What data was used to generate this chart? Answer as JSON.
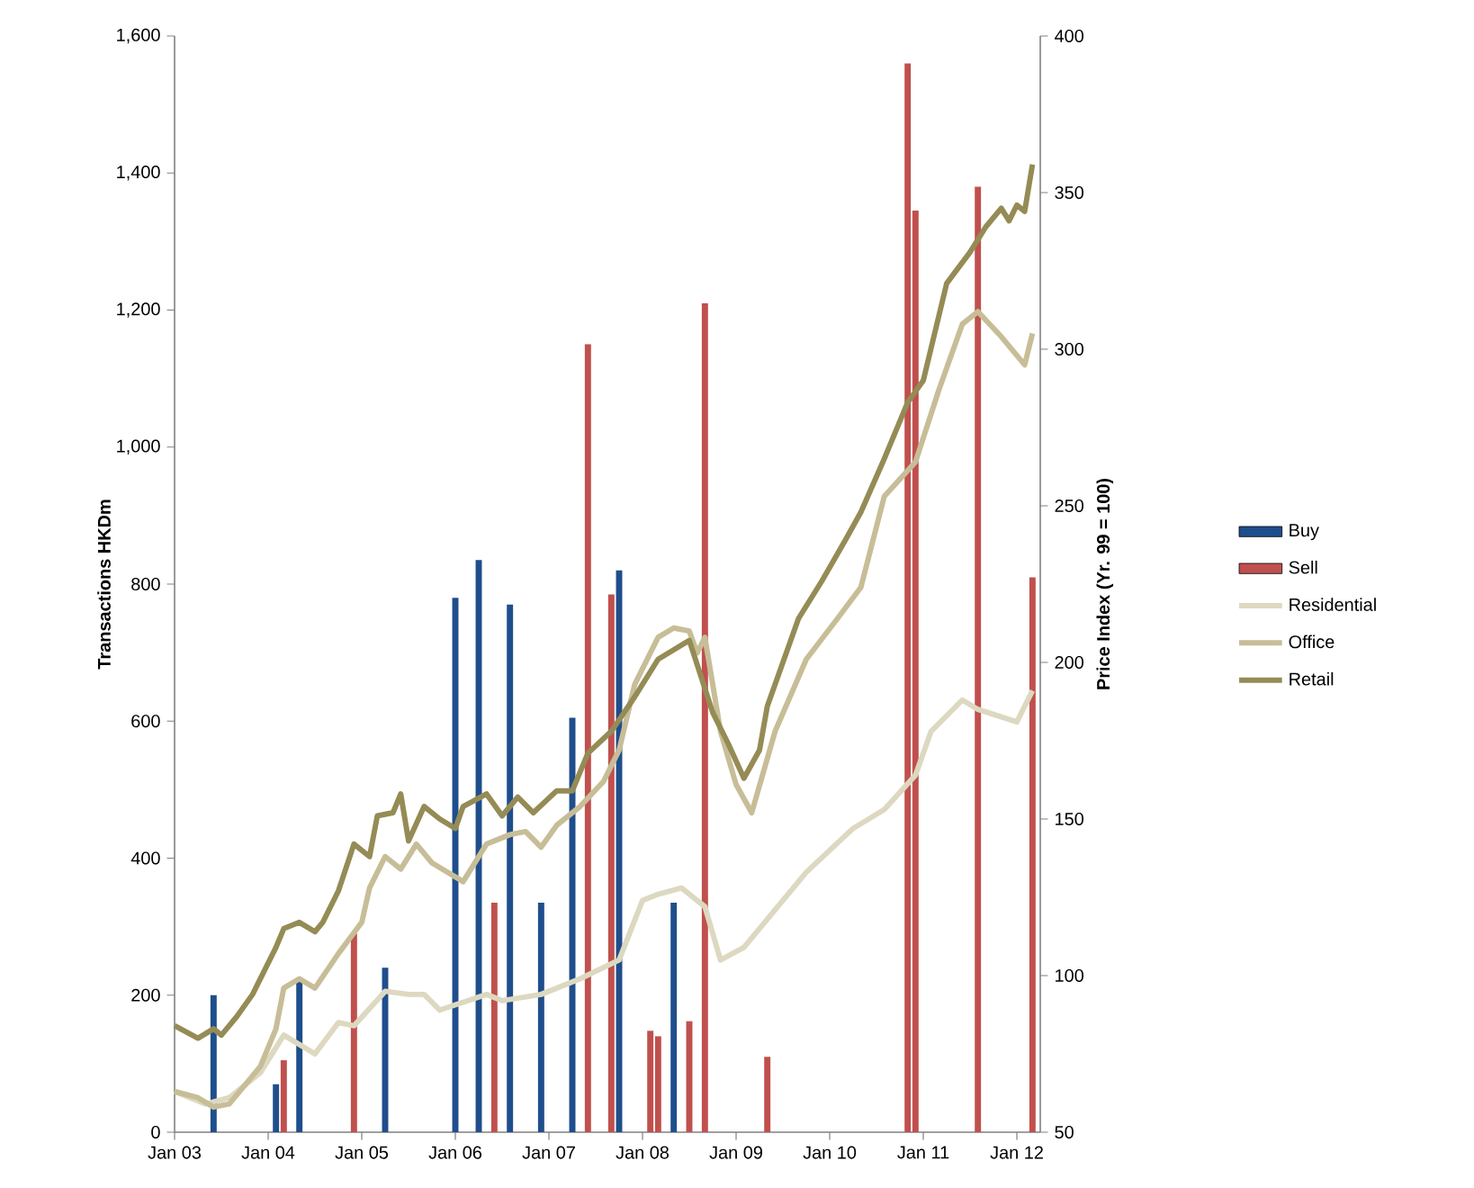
{
  "chart_data": {
    "type": "bar",
    "ylabel": "Transactions HKDm",
    "y2label": "Price Index (Yr. 99 = 100)",
    "legend": "right",
    "xlim": [
      "2003-01",
      "2012-04"
    ],
    "xticks": [
      {
        "value": "2003-01",
        "label": "Jan 03"
      },
      {
        "value": "2004-01",
        "label": "Jan 04"
      },
      {
        "value": "2005-01",
        "label": "Jan 05"
      },
      {
        "value": "2006-01",
        "label": "Jan 06"
      },
      {
        "value": "2007-01",
        "label": "Jan 07"
      },
      {
        "value": "2008-01",
        "label": "Jan 08"
      },
      {
        "value": "2009-01",
        "label": "Jan 09"
      },
      {
        "value": "2010-01",
        "label": "Jan 10"
      },
      {
        "value": "2011-01",
        "label": "Jan 11"
      },
      {
        "value": "2012-01",
        "label": "Jan 12"
      }
    ],
    "ylim": [
      0,
      1600
    ],
    "yticks": [
      0,
      200,
      400,
      600,
      800,
      {
        "value": 1000,
        "label": "1,000"
      },
      {
        "value": 1200,
        "label": "1,200"
      },
      {
        "value": 1400,
        "label": "1,400"
      },
      {
        "value": 1600,
        "label": "1,600"
      }
    ],
    "y2lim": [
      50,
      400
    ],
    "y2ticks": [
      50,
      100,
      150,
      200,
      250,
      300,
      350,
      400
    ],
    "series": [
      {
        "name": "Buy",
        "color": "#1f4e8c",
        "x": [
          "2003-06",
          "2004-02",
          "2004-05",
          "2005-04",
          "2006-01",
          "2006-04",
          "2006-08",
          "2006-12",
          "2007-04",
          "2007-10",
          "2008-05"
        ],
        "values": [
          200,
          70,
          225,
          240,
          780,
          835,
          770,
          335,
          605,
          820,
          335
        ]
      },
      {
        "name": "Sell",
        "color": "#c0504d",
        "x": [
          "2004-03",
          "2004-12",
          "2006-06",
          "2007-06",
          "2007-09",
          "2008-02",
          "2008-03",
          "2008-07",
          "2008-09",
          "2009-05",
          "2010-11",
          "2010-12",
          "2011-08",
          "2012-03"
        ],
        "values": [
          105,
          290,
          335,
          1150,
          785,
          148,
          140,
          162,
          1210,
          110,
          1560,
          1345,
          1380,
          810
        ]
      },
      {
        "name": "Residential",
        "type": "line",
        "axis": "y2",
        "color": "#ddd8c0",
        "x": [
          "2003-01",
          "2003-05",
          "2003-08",
          "2003-12",
          "2004-03",
          "2004-07",
          "2004-10",
          "2004-12",
          "2005-04",
          "2005-07",
          "2005-09",
          "2005-11",
          "2006-05",
          "2006-07",
          "2006-12",
          "2007-05",
          "2007-10",
          "2008-01",
          "2008-03",
          "2008-06",
          "2008-09",
          "2008-11",
          "2009-02",
          "2009-05",
          "2009-10",
          "2010-04",
          "2010-08",
          "2010-12",
          "2011-02",
          "2011-06",
          "2011-08",
          "2012-01",
          "2012-03"
        ],
        "values": [
          63,
          59,
          61,
          69,
          81,
          75,
          85,
          84,
          95,
          94,
          94,
          89,
          94,
          92,
          94,
          99,
          105,
          124,
          126,
          128,
          122,
          105,
          109,
          118,
          133,
          147,
          153,
          164,
          178,
          188,
          185,
          181,
          191
        ]
      },
      {
        "name": "Office",
        "type": "line",
        "axis": "y2",
        "color": "#c7bd97",
        "x": [
          "2003-01",
          "2003-04",
          "2003-06",
          "2003-08",
          "2003-10",
          "2003-12",
          "2004-02",
          "2004-03",
          "2004-05",
          "2004-07",
          "2004-10",
          "2005-01",
          "2005-02",
          "2005-04",
          "2005-06",
          "2005-08",
          "2005-10",
          "2006-02",
          "2006-05",
          "2006-08",
          "2006-10",
          "2006-12",
          "2007-02",
          "2007-05",
          "2007-08",
          "2007-10",
          "2007-12",
          "2008-03",
          "2008-05",
          "2008-07",
          "2008-08",
          "2008-09",
          "2008-11",
          "2009-01",
          "2009-03",
          "2009-06",
          "2009-10",
          "2010-02",
          "2010-05",
          "2010-08",
          "2010-12",
          "2011-03",
          "2011-06",
          "2011-08",
          "2011-11",
          "2012-02",
          "2012-03"
        ],
        "values": [
          63,
          61,
          58,
          59,
          65,
          71,
          83,
          96,
          99,
          96,
          107,
          117,
          128,
          138,
          134,
          142,
          136,
          130,
          142,
          145,
          146,
          141,
          148,
          154,
          162,
          172,
          193,
          208,
          211,
          210,
          203,
          208,
          178,
          161,
          152,
          178,
          201,
          214,
          224,
          253,
          264,
          287,
          308,
          312,
          304,
          295,
          305
        ]
      },
      {
        "name": "Retail",
        "type": "line",
        "axis": "y2",
        "color": "#958b55",
        "x": [
          "2003-01",
          "2003-04",
          "2003-06",
          "2003-07",
          "2003-09",
          "2003-11",
          "2004-02",
          "2004-03",
          "2004-05",
          "2004-07",
          "2004-08",
          "2004-10",
          "2004-12",
          "2005-02",
          "2005-03",
          "2005-05",
          "2005-06",
          "2005-07",
          "2005-09",
          "2005-11",
          "2006-01",
          "2006-02",
          "2006-05",
          "2006-07",
          "2006-09",
          "2006-11",
          "2007-02",
          "2007-04",
          "2007-06",
          "2007-09",
          "2007-12",
          "2008-03",
          "2008-07",
          "2008-10",
          "2008-12",
          "2009-02",
          "2009-04",
          "2009-05",
          "2009-09",
          "2009-12",
          "2010-03",
          "2010-05",
          "2010-08",
          "2010-11",
          "2011-01",
          "2011-04",
          "2011-07",
          "2011-09",
          "2011-11",
          "2011-12",
          "2012-01",
          "2012-02",
          "2012-03"
        ],
        "values": [
          84,
          80,
          83,
          81,
          87,
          94,
          109,
          115,
          117,
          114,
          117,
          127,
          142,
          138,
          151,
          152,
          158,
          143,
          154,
          150,
          147,
          154,
          158,
          151,
          157,
          152,
          159,
          159,
          171,
          178,
          189,
          201,
          207,
          184,
          174,
          163,
          172,
          186,
          214,
          226,
          239,
          248,
          265,
          283,
          290,
          321,
          331,
          339,
          345,
          341,
          346,
          344,
          359
        ]
      }
    ]
  }
}
